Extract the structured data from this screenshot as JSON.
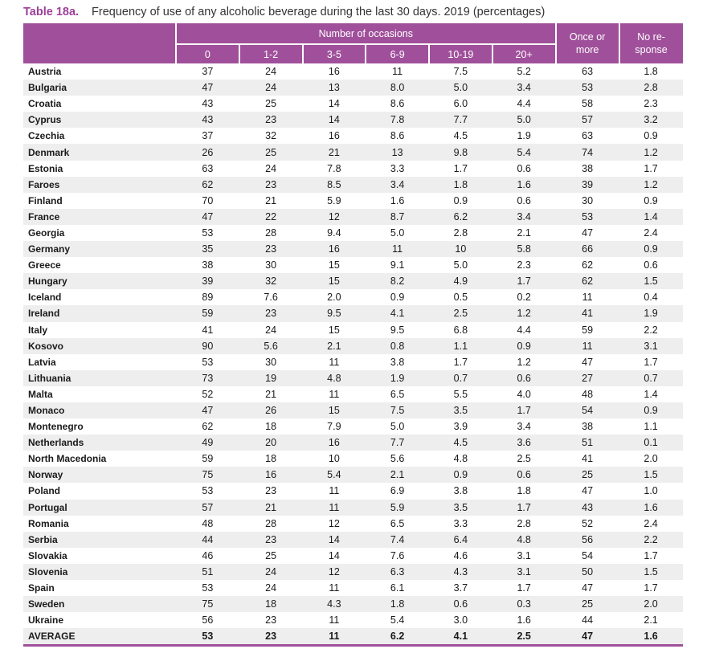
{
  "caption": {
    "number": "Table 18a.",
    "title": "Frequency of use of any alcoholic beverage during the last 30 days. 2019 (percentages)"
  },
  "header": {
    "group_label": "Number of occasions",
    "columns": [
      "0",
      "1-2",
      "3-5",
      "6-9",
      "10-19",
      "20+"
    ],
    "once_line1": "Once or",
    "once_line2": "more",
    "nr_line1": "No re-",
    "nr_line2": "sponse"
  },
  "rows": [
    {
      "country": "Austria",
      "values": [
        "37",
        "24",
        "16",
        "11",
        "7.5",
        "5.2",
        "63",
        "1.8"
      ]
    },
    {
      "country": "Bulgaria",
      "values": [
        "47",
        "24",
        "13",
        "8.0",
        "5.0",
        "3.4",
        "53",
        "2.8"
      ]
    },
    {
      "country": "Croatia",
      "values": [
        "43",
        "25",
        "14",
        "8.6",
        "6.0",
        "4.4",
        "58",
        "2.3"
      ]
    },
    {
      "country": "Cyprus",
      "values": [
        "43",
        "23",
        "14",
        "7.8",
        "7.7",
        "5.0",
        "57",
        "3.2"
      ]
    },
    {
      "country": "Czechia",
      "values": [
        "37",
        "32",
        "16",
        "8.6",
        "4.5",
        "1.9",
        "63",
        "0.9"
      ]
    },
    {
      "country": "Denmark",
      "values": [
        "26",
        "25",
        "21",
        "13",
        "9.8",
        "5.4",
        "74",
        "1.2"
      ]
    },
    {
      "country": "Estonia",
      "values": [
        "63",
        "24",
        "7.8",
        "3.3",
        "1.7",
        "0.6",
        "38",
        "1.7"
      ]
    },
    {
      "country": "Faroes",
      "values": [
        "62",
        "23",
        "8.5",
        "3.4",
        "1.8",
        "1.6",
        "39",
        "1.2"
      ]
    },
    {
      "country": "Finland",
      "values": [
        "70",
        "21",
        "5.9",
        "1.6",
        "0.9",
        "0.6",
        "30",
        "0.9"
      ]
    },
    {
      "country": "France",
      "values": [
        "47",
        "22",
        "12",
        "8.7",
        "6.2",
        "3.4",
        "53",
        "1.4"
      ]
    },
    {
      "country": "Georgia",
      "values": [
        "53",
        "28",
        "9.4",
        "5.0",
        "2.8",
        "2.1",
        "47",
        "2.4"
      ]
    },
    {
      "country": "Germany",
      "values": [
        "35",
        "23",
        "16",
        "11",
        "10",
        "5.8",
        "66",
        "0.9"
      ]
    },
    {
      "country": "Greece",
      "values": [
        "38",
        "30",
        "15",
        "9.1",
        "5.0",
        "2.3",
        "62",
        "0.6"
      ]
    },
    {
      "country": "Hungary",
      "values": [
        "39",
        "32",
        "15",
        "8.2",
        "4.9",
        "1.7",
        "62",
        "1.5"
      ]
    },
    {
      "country": "Iceland",
      "values": [
        "89",
        "7.6",
        "2.0",
        "0.9",
        "0.5",
        "0.2",
        "11",
        "0.4"
      ]
    },
    {
      "country": "Ireland",
      "values": [
        "59",
        "23",
        "9.5",
        "4.1",
        "2.5",
        "1.2",
        "41",
        "1.9"
      ]
    },
    {
      "country": "Italy",
      "values": [
        "41",
        "24",
        "15",
        "9.5",
        "6.8",
        "4.4",
        "59",
        "2.2"
      ]
    },
    {
      "country": "Kosovo",
      "values": [
        "90",
        "5.6",
        "2.1",
        "0.8",
        "1.1",
        "0.9",
        "11",
        "3.1"
      ]
    },
    {
      "country": "Latvia",
      "values": [
        "53",
        "30",
        "11",
        "3.8",
        "1.7",
        "1.2",
        "47",
        "1.7"
      ]
    },
    {
      "country": "Lithuania",
      "values": [
        "73",
        "19",
        "4.8",
        "1.9",
        "0.7",
        "0.6",
        "27",
        "0.7"
      ]
    },
    {
      "country": "Malta",
      "values": [
        "52",
        "21",
        "11",
        "6.5",
        "5.5",
        "4.0",
        "48",
        "1.4"
      ]
    },
    {
      "country": "Monaco",
      "values": [
        "47",
        "26",
        "15",
        "7.5",
        "3.5",
        "1.7",
        "54",
        "0.9"
      ]
    },
    {
      "country": "Montenegro",
      "values": [
        "62",
        "18",
        "7.9",
        "5.0",
        "3.9",
        "3.4",
        "38",
        "1.1"
      ]
    },
    {
      "country": "Netherlands",
      "values": [
        "49",
        "20",
        "16",
        "7.7",
        "4.5",
        "3.6",
        "51",
        "0.1"
      ]
    },
    {
      "country": "North Macedonia",
      "values": [
        "59",
        "18",
        "10",
        "5.6",
        "4.8",
        "2.5",
        "41",
        "2.0"
      ]
    },
    {
      "country": "Norway",
      "values": [
        "75",
        "16",
        "5.4",
        "2.1",
        "0.9",
        "0.6",
        "25",
        "1.5"
      ]
    },
    {
      "country": "Poland",
      "values": [
        "53",
        "23",
        "11",
        "6.9",
        "3.8",
        "1.8",
        "47",
        "1.0"
      ]
    },
    {
      "country": "Portugal",
      "values": [
        "57",
        "21",
        "11",
        "5.9",
        "3.5",
        "1.7",
        "43",
        "1.6"
      ]
    },
    {
      "country": "Romania",
      "values": [
        "48",
        "28",
        "12",
        "6.5",
        "3.3",
        "2.8",
        "52",
        "2.4"
      ]
    },
    {
      "country": "Serbia",
      "values": [
        "44",
        "23",
        "14",
        "7.4",
        "6.4",
        "4.8",
        "56",
        "2.2"
      ]
    },
    {
      "country": "Slovakia",
      "values": [
        "46",
        "25",
        "14",
        "7.6",
        "4.6",
        "3.1",
        "54",
        "1.7"
      ]
    },
    {
      "country": "Slovenia",
      "values": [
        "51",
        "24",
        "12",
        "6.3",
        "4.3",
        "3.1",
        "50",
        "1.5"
      ]
    },
    {
      "country": "Spain",
      "values": [
        "53",
        "24",
        "11",
        "6.1",
        "3.7",
        "1.7",
        "47",
        "1.7"
      ]
    },
    {
      "country": "Sweden",
      "values": [
        "75",
        "18",
        "4.3",
        "1.8",
        "0.6",
        "0.3",
        "25",
        "2.0"
      ]
    },
    {
      "country": "Ukraine",
      "values": [
        "56",
        "23",
        "11",
        "5.4",
        "3.0",
        "1.6",
        "44",
        "2.1"
      ]
    }
  ],
  "average": {
    "country": "AVERAGE",
    "values": [
      "53",
      "23",
      "11",
      "6.2",
      "4.1",
      "2.5",
      "47",
      "1.6"
    ]
  },
  "colors": {
    "accent": "#a0509b",
    "caption_number": "#9b3f97",
    "row_alt": "#eeeeee"
  }
}
